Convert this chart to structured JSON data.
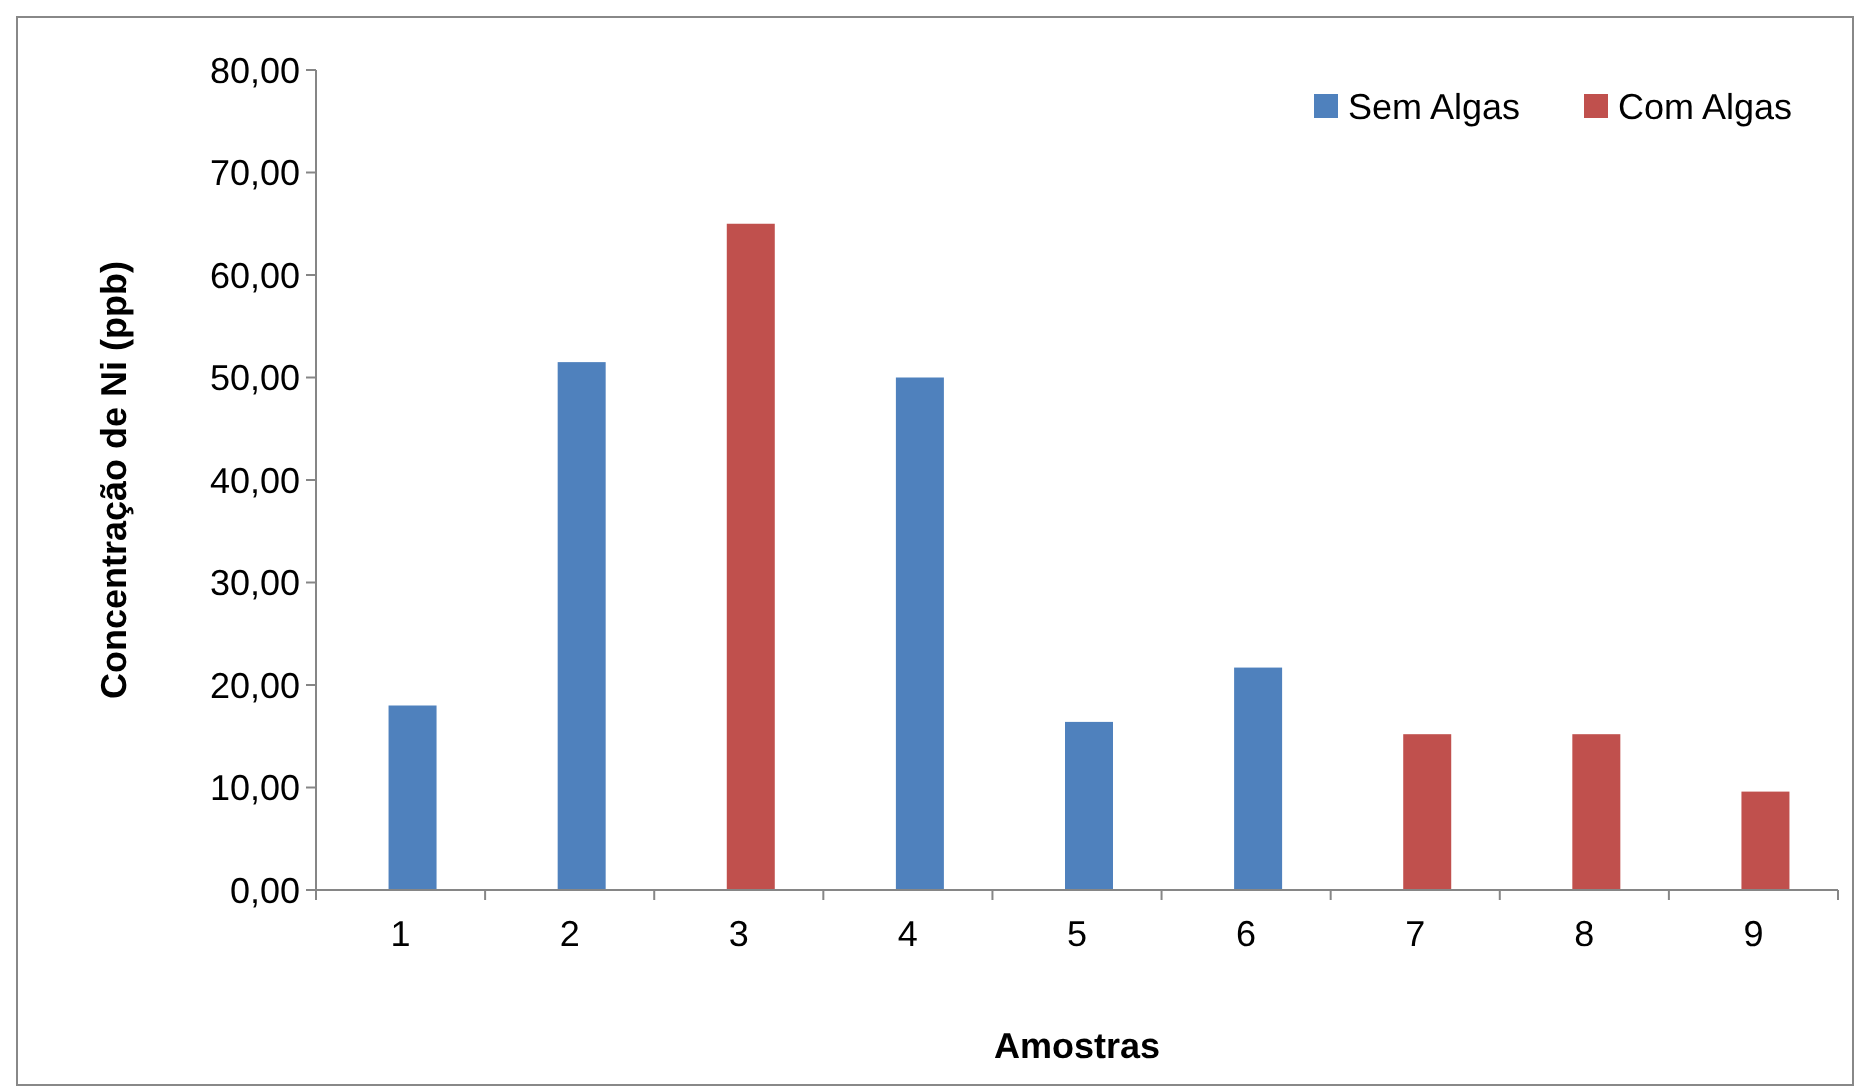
{
  "chart_data": {
    "type": "bar",
    "xlabel": "Amostras",
    "ylabel": "Concentração de Ni (ppb)",
    "categories": [
      "1",
      "2",
      "3",
      "4",
      "5",
      "6",
      "7",
      "8",
      "9"
    ],
    "series": [
      {
        "name": "Sem Algas",
        "color": "#4f81bd",
        "values": [
          18.0,
          51.5,
          null,
          50.0,
          16.4,
          21.7,
          null,
          null,
          null
        ]
      },
      {
        "name": "Com Algas",
        "color": "#c0504d",
        "values": [
          null,
          null,
          65.0,
          null,
          null,
          null,
          15.2,
          15.2,
          9.6
        ]
      }
    ],
    "ylim": [
      0,
      80
    ],
    "yticks": [
      {
        "value": 0,
        "label": "0,00"
      },
      {
        "value": 10,
        "label": "10,00"
      },
      {
        "value": 20,
        "label": "20,00"
      },
      {
        "value": 30,
        "label": "30,00"
      },
      {
        "value": 40,
        "label": "40,00"
      },
      {
        "value": 50,
        "label": "50,00"
      },
      {
        "value": 60,
        "label": "60,00"
      },
      {
        "value": 70,
        "label": "70,00"
      },
      {
        "value": 80,
        "label": "80,00"
      }
    ],
    "grid": false,
    "legend": "top right"
  }
}
